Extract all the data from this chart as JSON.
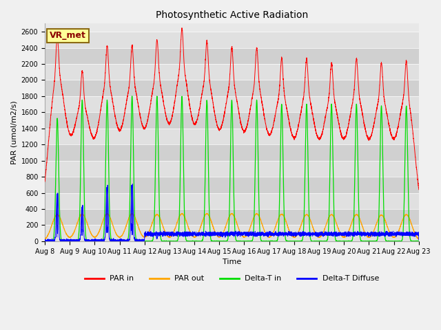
{
  "title": "Photosynthetic Active Radiation",
  "ylabel": "PAR (umol/m2/s)",
  "xlabel": "Time",
  "ylim": [
    0,
    2700
  ],
  "yticks": [
    0,
    200,
    400,
    600,
    800,
    1000,
    1200,
    1400,
    1600,
    1800,
    2000,
    2200,
    2400,
    2600
  ],
  "colors": {
    "PAR in": "#ff0000",
    "PAR out": "#ffa500",
    "Delta-T in": "#00dd00",
    "Delta-T Diffuse": "#0000ff"
  },
  "annotation_text": "VR_met",
  "annotation_color": "#8B0000",
  "annotation_bg": "#ffff99",
  "plot_bg": "#e8e8e8",
  "par_in_peaks": [
    2400,
    1950,
    2250,
    2250,
    2320,
    2450,
    2300,
    2225,
    2225,
    2100,
    2100,
    2050,
    2100,
    2050,
    2100
  ],
  "par_out_peaks": [
    330,
    335,
    340,
    340,
    330,
    340,
    340,
    340,
    340,
    335,
    330,
    330,
    330,
    325,
    330
  ],
  "delta_t_in_peaks": [
    1525,
    1750,
    1750,
    1800,
    1800,
    1800,
    1750,
    1750,
    1750,
    1700,
    1700,
    1700,
    1700,
    1680,
    1680
  ],
  "delta_t_diff_peaks": [
    680,
    500,
    780,
    800,
    100,
    80,
    80,
    80,
    80,
    80,
    80,
    80,
    80,
    80,
    80
  ],
  "figsize": [
    6.4,
    4.8
  ],
  "dpi": 100
}
